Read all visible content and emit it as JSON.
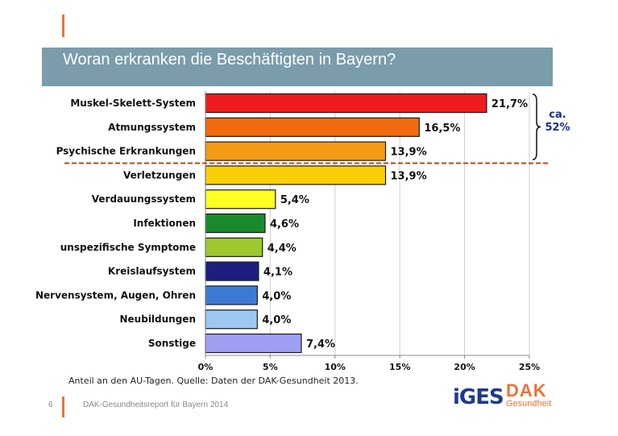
{
  "title": "Woran erkranken die Beschäftigten in Bayern?",
  "chart_data": {
    "type": "bar",
    "orientation": "horizontal",
    "categories": [
      "Muskel-Skelett-System",
      "Atmungssystem",
      "Psychische Erkrankungen",
      "Verletzungen",
      "Verdauungssystem",
      "Infektionen",
      "unspezifische Symptome",
      "Kreislaufsystem",
      "Nervensystem, Augen, Ohren",
      "Neubildungen",
      "Sonstige"
    ],
    "values": [
      21.7,
      16.5,
      13.9,
      13.9,
      5.4,
      4.6,
      4.4,
      4.1,
      4.0,
      4.0,
      7.4
    ],
    "value_labels": [
      "21,7%",
      "16,5%",
      "13,9%",
      "13,9%",
      "5,4%",
      "4,6%",
      "4,4%",
      "4,1%",
      "4,0%",
      "4,0%",
      "7,4%"
    ],
    "colors": [
      "#ee1c1c",
      "#f26a10",
      "#f59b16",
      "#fbce07",
      "#ffff22",
      "#1a8a2e",
      "#9dc92c",
      "#1c1f7e",
      "#3d7ad6",
      "#9cc8f2",
      "#9e9ef2"
    ],
    "xlim": [
      0,
      25
    ],
    "xticks": [
      0,
      5,
      10,
      15,
      20,
      25
    ],
    "xtick_labels": [
      "0%",
      "5%",
      "10%",
      "15%",
      "20%",
      "25%"
    ],
    "grid": true,
    "annotation": {
      "text_line1": "ca.",
      "text_line2": "52%"
    }
  },
  "source_note": "Anteil an den AU-Tagen. Quelle: Daten der DAK-Gesundheit 2013.",
  "footer": {
    "page_number": "6",
    "text": "DAK-Gesundheitsreport für Bayern 2014"
  },
  "logos": {
    "iges": "iGES",
    "dak_main": "DAK",
    "dak_sub": "Gesundheit"
  },
  "colors": {
    "title_bar": "#7a9cab",
    "accent": "#e8743b",
    "annotation": "#1b2f8a"
  }
}
